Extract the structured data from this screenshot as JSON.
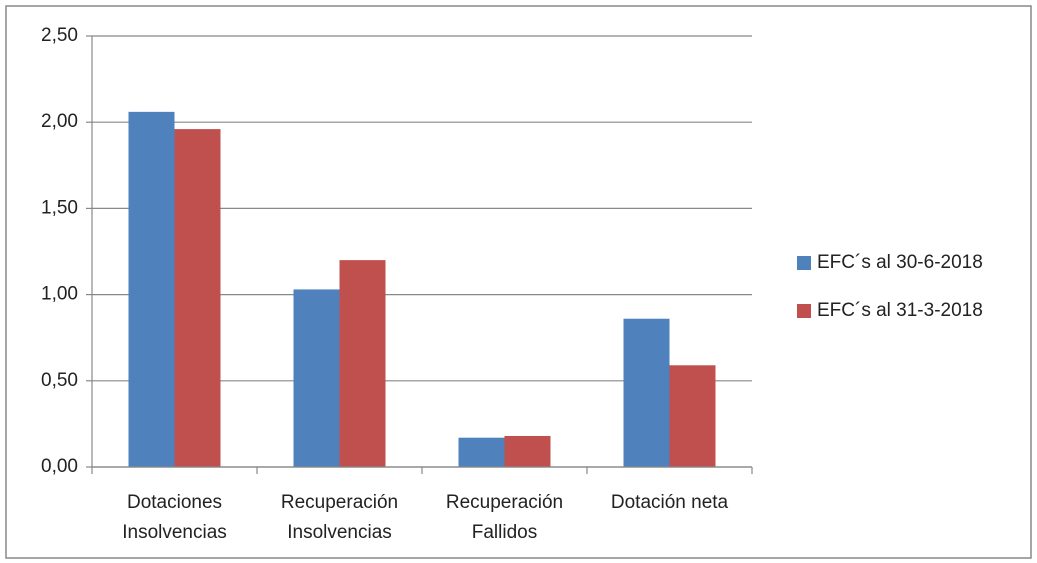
{
  "chart_data": {
    "type": "bar",
    "categories": [
      "Dotaciones\nInsolvencias",
      "Recuperación\nInsolvencias",
      "Recuperación\nFallidos",
      "Dotación neta"
    ],
    "series": [
      {
        "name": "EFC´s al 30-6-2018",
        "color": "#4f81bd",
        "values": [
          2.06,
          1.03,
          0.17,
          0.86
        ]
      },
      {
        "name": "EFC´s al 31-3-2018",
        "color": "#c0504d",
        "values": [
          1.96,
          1.2,
          0.18,
          0.59
        ]
      }
    ],
    "ylim": [
      0,
      2.5
    ],
    "yticks": [
      {
        "value": 0,
        "label": "0,00"
      },
      {
        "value": 0.5,
        "label": "0,50"
      },
      {
        "value": 1,
        "label": "1,00"
      },
      {
        "value": 1.5,
        "label": "1,50"
      },
      {
        "value": 2,
        "label": "2,00"
      },
      {
        "value": 2.5,
        "label": "2,50"
      }
    ],
    "grid": true,
    "legend": "right"
  }
}
